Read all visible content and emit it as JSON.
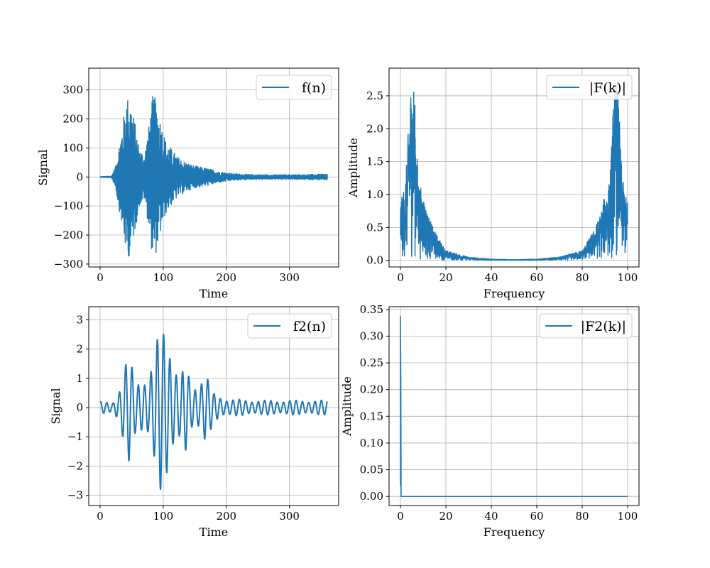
{
  "chart_data": [
    {
      "type": "line",
      "id": "f",
      "xlabel": "Time",
      "ylabel": "Signal",
      "xlim": [
        -18,
        378
      ],
      "ylim": [
        -310,
        375
      ],
      "xticks": [
        0,
        100,
        200,
        300
      ],
      "yticks": [
        -300,
        -200,
        -100,
        0,
        100,
        200,
        300
      ],
      "xtick_labels": [
        "0",
        "100",
        "200",
        "300"
      ],
      "ytick_labels": [
        "−300",
        "−200",
        "−100",
        "0",
        "100",
        "200",
        "300"
      ],
      "grid": true,
      "legend": "upper-right",
      "color": "#1f77b4",
      "series": [
        {
          "name": "f(n)",
          "shape": "noise-envelope",
          "x_range": [
            0,
            360
          ],
          "envelope": [
            [
              0,
              1
            ],
            [
              18,
              4
            ],
            [
              24,
              40
            ],
            [
              30,
              130
            ],
            [
              36,
              220
            ],
            [
              42,
              330
            ],
            [
              48,
              320
            ],
            [
              56,
              210
            ],
            [
              62,
              120
            ],
            [
              70,
              90
            ],
            [
              78,
              220
            ],
            [
              84,
              345
            ],
            [
              90,
              300
            ],
            [
              96,
              230
            ],
            [
              104,
              150
            ],
            [
              114,
              110
            ],
            [
              124,
              80
            ],
            [
              136,
              60
            ],
            [
              150,
              45
            ],
            [
              170,
              35
            ],
            [
              190,
              22
            ],
            [
              210,
              14
            ],
            [
              240,
              10
            ],
            [
              280,
              9
            ],
            [
              320,
              10
            ],
            [
              360,
              12
            ]
          ]
        }
      ]
    },
    {
      "type": "line",
      "id": "F",
      "xlabel": "Frequency",
      "ylabel": "Amplitude",
      "xlim": [
        -5,
        105
      ],
      "ylim": [
        -0.1,
        2.92
      ],
      "xticks": [
        0,
        20,
        40,
        60,
        80,
        100
      ],
      "yticks": [
        0.0,
        0.5,
        1.0,
        1.5,
        2.0,
        2.5
      ],
      "xtick_labels": [
        "0",
        "20",
        "40",
        "60",
        "80",
        "100"
      ],
      "ytick_labels": [
        "0.0",
        "0.5",
        "1.0",
        "1.5",
        "2.0",
        "2.5"
      ],
      "grid": true,
      "legend": "upper-right",
      "color": "#1f77b4",
      "series": [
        {
          "name": "|F(k)|",
          "shape": "noise-envelope",
          "x_range": [
            0,
            100
          ],
          "envelope": [
            [
              0,
              0.9
            ],
            [
              1,
              1.0
            ],
            [
              2,
              1.2
            ],
            [
              3,
              1.6
            ],
            [
              4,
              2.5
            ],
            [
              5,
              2.78
            ],
            [
              6,
              2.7
            ],
            [
              7,
              1.8
            ],
            [
              8,
              1.2
            ],
            [
              10,
              1.0
            ],
            [
              12,
              0.7
            ],
            [
              15,
              0.45
            ],
            [
              20,
              0.15
            ],
            [
              30,
              0.05
            ],
            [
              40,
              0.02
            ],
            [
              50,
              0.01
            ],
            [
              60,
              0.02
            ],
            [
              70,
              0.05
            ],
            [
              80,
              0.15
            ],
            [
              85,
              0.45
            ],
            [
              88,
              0.7
            ],
            [
              90,
              1.0
            ],
            [
              92,
              1.2
            ],
            [
              93,
              1.8
            ],
            [
              94,
              2.7
            ],
            [
              95,
              2.78
            ],
            [
              96,
              2.5
            ],
            [
              97,
              1.6
            ],
            [
              98,
              1.2
            ],
            [
              99,
              1.0
            ],
            [
              100,
              0.9
            ]
          ]
        }
      ]
    },
    {
      "type": "line",
      "id": "f2",
      "xlabel": "Time",
      "ylabel": "Signal",
      "xlim": [
        -18,
        378
      ],
      "ylim": [
        -3.35,
        3.45
      ],
      "xticks": [
        0,
        100,
        200,
        300
      ],
      "yticks": [
        -3,
        -2,
        -1,
        0,
        1,
        2,
        3
      ],
      "xtick_labels": [
        "0",
        "100",
        "200",
        "300"
      ],
      "ytick_labels": [
        "−3",
        "−2",
        "−1",
        "0",
        "1",
        "2",
        "3"
      ],
      "grid": true,
      "legend": "upper-right",
      "color": "#1f77b4",
      "series": [
        {
          "name": "f2(n)",
          "shape": "oscillation",
          "period": 10,
          "x_range": [
            0,
            360
          ],
          "envelope": [
            [
              0,
              0.2
            ],
            [
              20,
              0.2
            ],
            [
              30,
              0.6
            ],
            [
              40,
              1.45
            ],
            [
              46,
              1.85
            ],
            [
              56,
              1.0
            ],
            [
              66,
              1.1
            ],
            [
              76,
              1.0
            ],
            [
              86,
              1.7
            ],
            [
              96,
              3.1
            ],
            [
              106,
              3.05
            ],
            [
              116,
              1.6
            ],
            [
              126,
              1.0
            ],
            [
              136,
              1.5
            ],
            [
              146,
              0.8
            ],
            [
              156,
              0.9
            ],
            [
              166,
              1.25
            ],
            [
              180,
              0.5
            ],
            [
              200,
              0.3
            ],
            [
              250,
              0.25
            ],
            [
              300,
              0.25
            ],
            [
              360,
              0.25
            ]
          ]
        }
      ]
    },
    {
      "type": "line",
      "id": "F2",
      "xlabel": "Frequency",
      "ylabel": "Amplitude",
      "xlim": [
        -5,
        105
      ],
      "ylim": [
        -0.017,
        0.355
      ],
      "xticks": [
        0,
        20,
        40,
        60,
        80,
        100
      ],
      "yticks": [
        0.0,
        0.05,
        0.1,
        0.15,
        0.2,
        0.25,
        0.3,
        0.35
      ],
      "xtick_labels": [
        "0",
        "20",
        "40",
        "60",
        "80",
        "100"
      ],
      "ytick_labels": [
        "0.00",
        "0.05",
        "0.10",
        "0.15",
        "0.20",
        "0.25",
        "0.30",
        "0.35"
      ],
      "grid": true,
      "legend": "upper-right",
      "color": "#1f77b4",
      "series": [
        {
          "name": "|F2(k)|",
          "points": [
            [
              0,
              0.02
            ],
            [
              0,
              0.337
            ],
            [
              0.2,
              0.2
            ],
            [
              0.3,
              0.0
            ],
            [
              0.6,
              0.0
            ],
            [
              100,
              0.0
            ]
          ]
        }
      ]
    }
  ]
}
